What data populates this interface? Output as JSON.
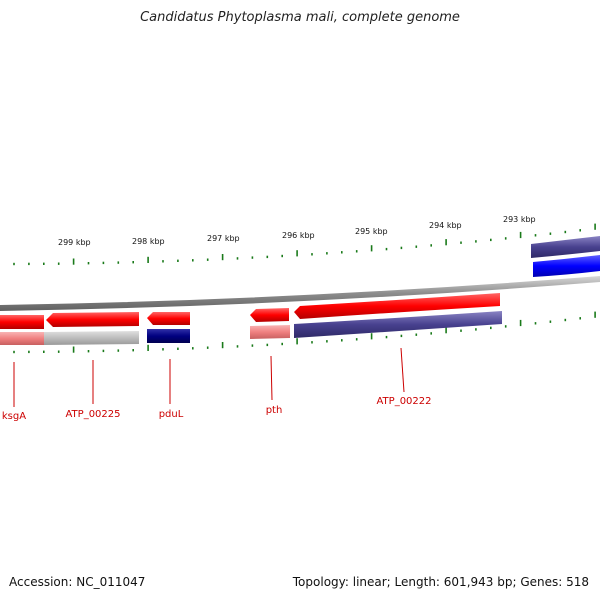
{
  "title": "Candidatus Phytoplasma mali, complete genome",
  "footer": {
    "accession": "Accession: NC_011047",
    "summary": "Topology: linear; Length: 601,943 bp; Genes: 518"
  },
  "colors": {
    "gene_red": "#ff0000",
    "pale_red": "#f08080",
    "gray": "#bdbdbd",
    "navy": "#000080",
    "slate": "#48418f",
    "blue": "#0000ff",
    "tick_green": "#1a7a1a",
    "label_red": "#cc0000",
    "backbone": "#8c8c8c"
  },
  "ruler_labels": [
    "299 kbp",
    "298 kbp",
    "297 kbp",
    "296 kbp",
    "295 kbp",
    "294 kbp",
    "293 kbp"
  ],
  "gene_labels": [
    "ksgA",
    "ATP_00225",
    "pduL",
    "pth",
    "ATP_00222"
  ]
}
